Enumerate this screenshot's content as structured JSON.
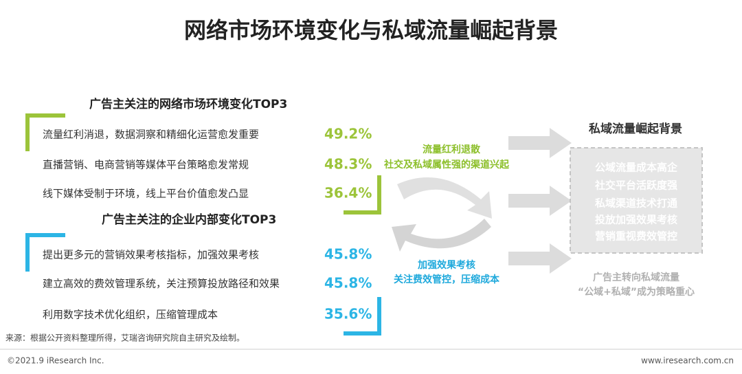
{
  "title": "网络市场环境变化与私域流量崛起背景",
  "market": {
    "heading": "广告主关注的网络市场环境变化TOP3",
    "items": [
      {
        "text": "流量红利消退，数据洞察和精细化运营愈发重要",
        "value": "49.2%"
      },
      {
        "text": "直播营销、电商营销等媒体平台策略愈发常规",
        "value": "48.3%"
      },
      {
        "text": "线下媒体受制于环境，线上平台价值愈发凸显",
        "value": "36.4%"
      }
    ]
  },
  "internal": {
    "heading": "广告主关注的企业内部变化TOP3",
    "items": [
      {
        "text": "提出更多元的营销效果考核指标，加强效果考核",
        "value": "45.8%"
      },
      {
        "text": "建立高效的费效管理系统，关注预算投放路径和效果",
        "value": "45.8%"
      },
      {
        "text": "利用数字技术优化组织，压缩管理成本",
        "value": "35.6%"
      }
    ]
  },
  "middle": {
    "green": [
      "流量红利退散",
      "社交及私域属性强的渠道兴起"
    ],
    "blue": [
      "加强效果考核",
      "关注费效管控，压缩成本"
    ]
  },
  "background": {
    "heading": "私域流量崛起背景",
    "box": [
      "公域流量成本高企",
      "社交平台活跃度强",
      "私域渠道技术打通",
      "投放加强效果考核",
      "营销重视费效管控"
    ],
    "conclusion": [
      "广告主转向私域流量",
      "“公域+私域”成为策略重心"
    ]
  },
  "source": "来源：根据公开资料整理所得，艾瑞咨询研究院自主研究及绘制。",
  "footer": {
    "copyright": "©2021.9 iResearch Inc.",
    "site": "www.iresearch.com.cn"
  }
}
